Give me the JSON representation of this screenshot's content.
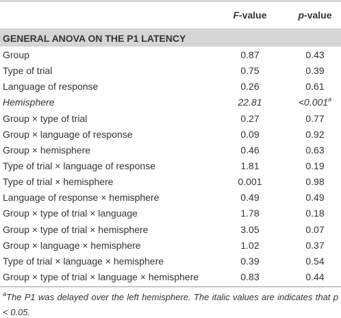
{
  "table": {
    "columns": [
      {
        "italic": "F",
        "text": "-value"
      },
      {
        "italic": "p",
        "text": "-value"
      }
    ],
    "section": "GENERAL ANOVA ON THE P1 LATENCY",
    "rows": [
      {
        "label": "Group",
        "f": "0.87",
        "p": "0.43"
      },
      {
        "label": "Type of trial",
        "f": "0.75",
        "p": "0.39"
      },
      {
        "label": "Language of response",
        "f": "0.26",
        "p": "0.61"
      },
      {
        "label": "Hemisphere",
        "f": "22.81",
        "p": "<0.001",
        "note": "a",
        "italic": true
      },
      {
        "label": "Group × type of trial",
        "f": "0.27",
        "p": "0.77"
      },
      {
        "label": "Group × language of response",
        "f": "0.09",
        "p": "0.92"
      },
      {
        "label": "Group × hemisphere",
        "f": "0.46",
        "p": "0.63"
      },
      {
        "label": "Type of trial × language of response",
        "f": "1.81",
        "p": "0.19"
      },
      {
        "label": "Type of trial × hemisphere",
        "f": "0.001",
        "p": "0.98"
      },
      {
        "label": "Language of response × hemisphere",
        "f": "0.49",
        "p": "0.49"
      },
      {
        "label": "Group × type of trial × language",
        "f": "1.78",
        "p": "0.18"
      },
      {
        "label": "Group × type of trial × hemisphere",
        "f": "3.05",
        "p": "0.07"
      },
      {
        "label": "Group × language × hemisphere",
        "f": "1.02",
        "p": "0.37"
      },
      {
        "label": "Type of trial × language × hemisphere",
        "f": "0.39",
        "p": "0.54"
      },
      {
        "label": "Group × type of trial × language × hemisphere",
        "f": "0.83",
        "p": "0.44"
      }
    ],
    "footnote": {
      "marker": "a",
      "text": "The P1 was delayed over the left hemisphere. The italic values are indicates that p < 0.05."
    }
  }
}
